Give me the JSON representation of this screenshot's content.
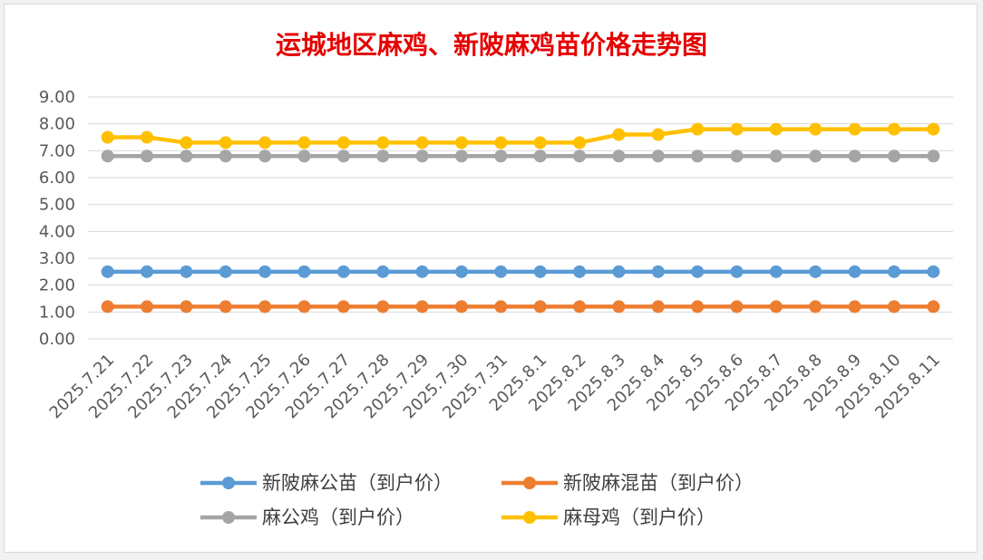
{
  "chart_data": {
    "type": "line",
    "title": "运城地区麻鸡、新陂麻鸡苗价格走势图",
    "xlabel": "",
    "ylabel": "",
    "ylim": [
      0,
      9
    ],
    "ytick_labels": [
      "0.00",
      "1.00",
      "2.00",
      "3.00",
      "4.00",
      "5.00",
      "6.00",
      "7.00",
      "8.00",
      "9.00"
    ],
    "grid": true,
    "legend_position": "bottom",
    "categories": [
      "2025.7.21",
      "2025.7.22",
      "2025.7.23",
      "2025.7.24",
      "2025.7.25",
      "2025.7.26",
      "2025.7.27",
      "2025.7.28",
      "2025.7.29",
      "2025.7.30",
      "2025.7.31",
      "2025.8.1",
      "2025.8.2",
      "2025.8.3",
      "2025.8.4",
      "2025.8.5",
      "2025.8.6",
      "2025.8.7",
      "2025.8.8",
      "2025.8.9",
      "2025.8.10",
      "2025.8.11"
    ],
    "series": [
      {
        "name": "新陂麻公苗（到户价）",
        "color": "#5b9bd5",
        "values": [
          2.5,
          2.5,
          2.5,
          2.5,
          2.5,
          2.5,
          2.5,
          2.5,
          2.5,
          2.5,
          2.5,
          2.5,
          2.5,
          2.5,
          2.5,
          2.5,
          2.5,
          2.5,
          2.5,
          2.5,
          2.5,
          2.5
        ]
      },
      {
        "name": "新陂麻混苗（到户价）",
        "color": "#ed7d31",
        "values": [
          1.2,
          1.2,
          1.2,
          1.2,
          1.2,
          1.2,
          1.2,
          1.2,
          1.2,
          1.2,
          1.2,
          1.2,
          1.2,
          1.2,
          1.2,
          1.2,
          1.2,
          1.2,
          1.2,
          1.2,
          1.2,
          1.2
        ]
      },
      {
        "name": "麻公鸡（到户价）",
        "color": "#a5a5a5",
        "values": [
          6.8,
          6.8,
          6.8,
          6.8,
          6.8,
          6.8,
          6.8,
          6.8,
          6.8,
          6.8,
          6.8,
          6.8,
          6.8,
          6.8,
          6.8,
          6.8,
          6.8,
          6.8,
          6.8,
          6.8,
          6.8,
          6.8
        ]
      },
      {
        "name": "麻母鸡（到户价）",
        "color": "#ffc000",
        "values": [
          7.5,
          7.5,
          7.3,
          7.3,
          7.3,
          7.3,
          7.3,
          7.3,
          7.3,
          7.3,
          7.3,
          7.3,
          7.3,
          7.6,
          7.6,
          7.8,
          7.8,
          7.8,
          7.8,
          7.8,
          7.8,
          7.8
        ]
      }
    ]
  }
}
